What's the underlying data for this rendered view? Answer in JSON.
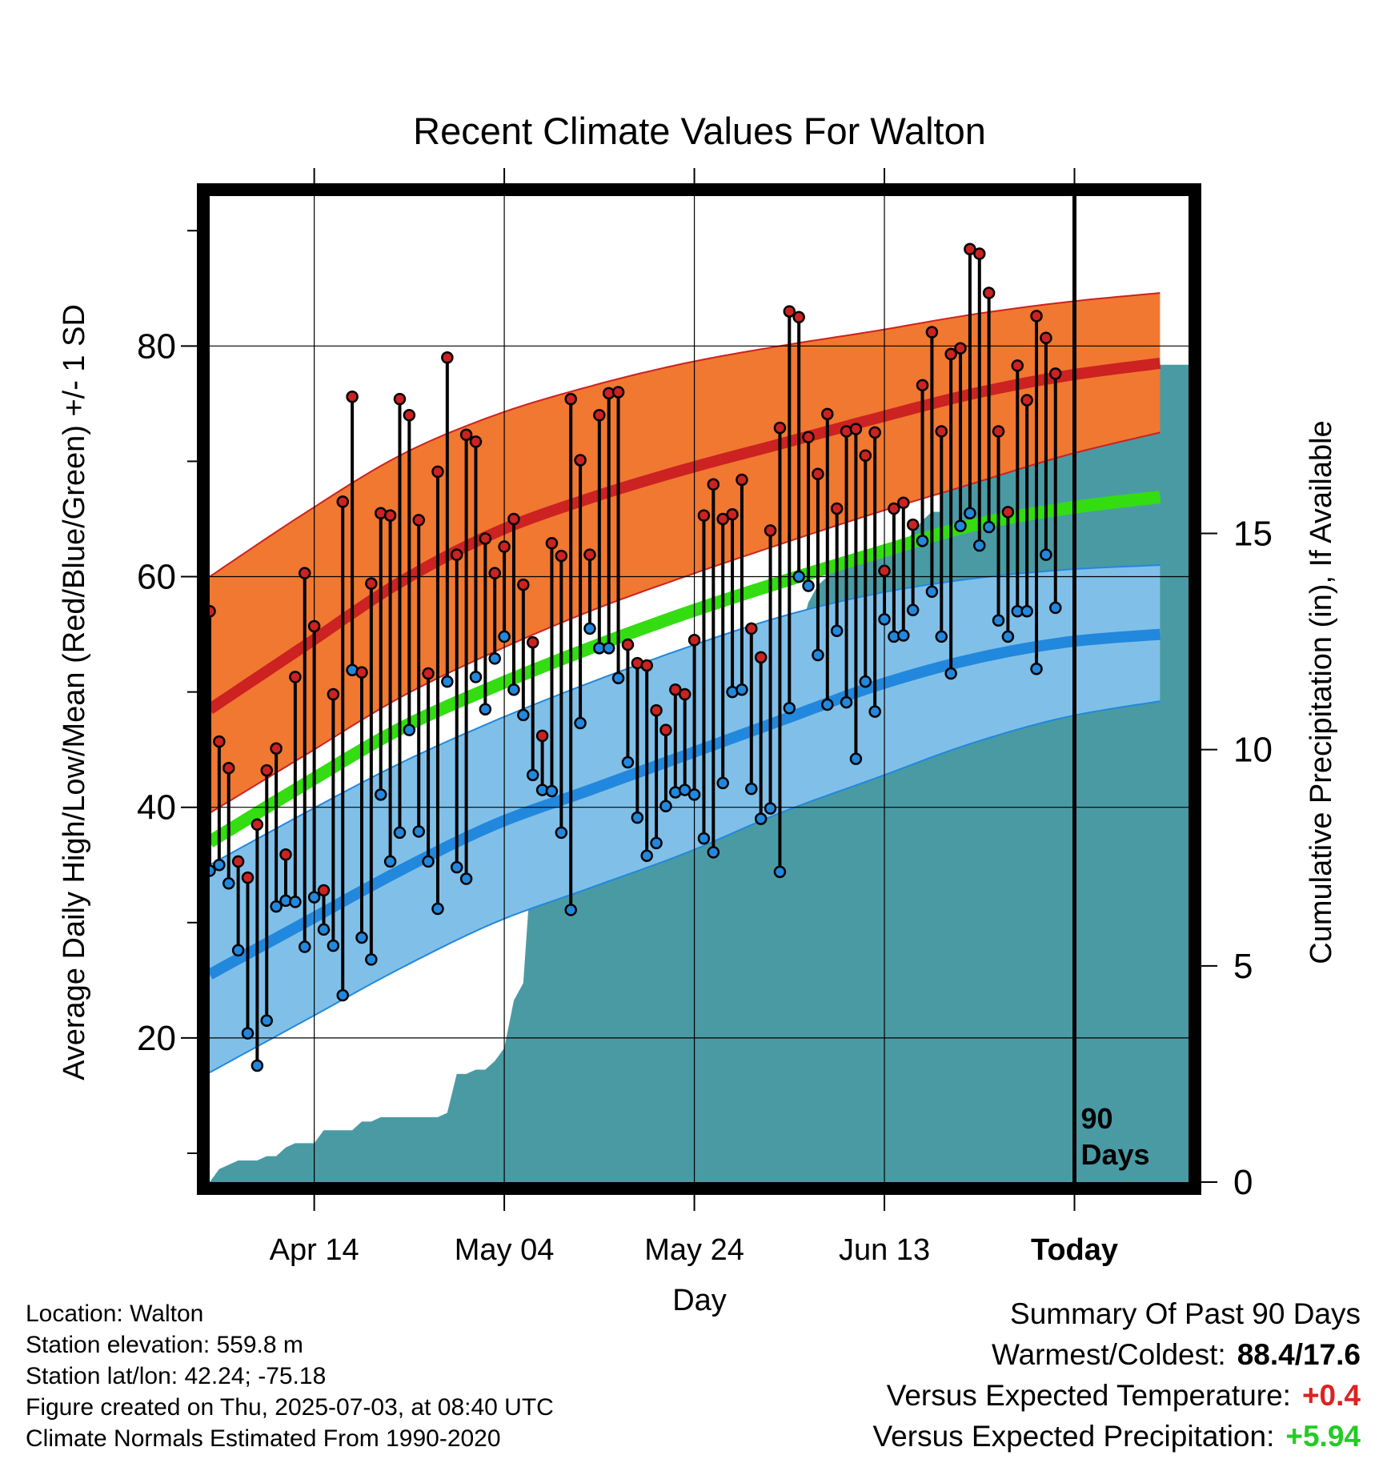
{
  "chart_data": {
    "type": "line",
    "title": "Recent Climate Values For Walton",
    "xlabel": "Day",
    "ylabel": "Average Daily High/Low/Mean (Red/Blue/Green) +/- 1 SD",
    "y2label": "Cumulative Precipitation (in), If Available",
    "xlim": [
      1,
      104
    ],
    "ylim": [
      7.5,
      93
    ],
    "y2lim": [
      0,
      22.8
    ],
    "x_ticks": [
      {
        "x": 12,
        "label": "Apr 14"
      },
      {
        "x": 32,
        "label": "May 04"
      },
      {
        "x": 52,
        "label": "May 24"
      },
      {
        "x": 72,
        "label": "Jun 13"
      },
      {
        "x": 92,
        "label": "Today"
      }
    ],
    "y_ticks": [
      20,
      40,
      60,
      80
    ],
    "y2_ticks": [
      0,
      5,
      10,
      15
    ],
    "today_x": 92,
    "today_label": [
      "90",
      "Days"
    ],
    "normals": {
      "x": [
        1,
        11,
        21,
        31,
        41,
        51,
        61,
        71,
        81,
        91,
        101
      ],
      "high_mean": [
        48.5,
        54.0,
        59.5,
        63.8,
        66.8,
        69.3,
        71.5,
        73.7,
        75.8,
        77.4,
        78.5
      ],
      "high_upper": [
        60.0,
        65.5,
        70.5,
        74.0,
        76.5,
        78.5,
        80.0,
        81.3,
        82.7,
        83.8,
        84.6
      ],
      "high_lower": [
        39.5,
        44.5,
        49.5,
        53.5,
        57.0,
        60.0,
        62.8,
        65.5,
        68.0,
        70.5,
        72.5
      ],
      "mean": [
        37.0,
        42.0,
        46.8,
        50.5,
        53.8,
        56.8,
        59.5,
        62.0,
        64.4,
        65.9,
        66.9
      ],
      "low_mean": [
        25.5,
        30.0,
        34.5,
        38.5,
        41.5,
        44.5,
        47.5,
        50.5,
        52.8,
        54.3,
        55.0
      ],
      "low_upper": [
        35.0,
        39.5,
        43.8,
        47.5,
        50.8,
        53.8,
        56.5,
        58.5,
        59.8,
        60.6,
        61.0
      ],
      "low_lower": [
        17.0,
        21.5,
        26.0,
        30.0,
        33.0,
        36.0,
        39.5,
        42.5,
        45.5,
        47.8,
        49.2
      ]
    },
    "series": [
      {
        "name": "High",
        "color": "#cc2222",
        "values": [
          57.0,
          45.7,
          43.4,
          35.3,
          33.9,
          38.5,
          43.2,
          45.1,
          35.9,
          51.3,
          60.3,
          55.7,
          32.8,
          49.8,
          66.5,
          75.6,
          51.7,
          59.4,
          65.5,
          65.3,
          75.4,
          74.0,
          64.9,
          51.6,
          69.1,
          79.0,
          61.9,
          72.3,
          71.7,
          63.3,
          60.3,
          62.6,
          65.0,
          59.3,
          54.3,
          46.2,
          62.9,
          61.8,
          75.4,
          70.1,
          61.9,
          74.0,
          75.9,
          76.0,
          54.1,
          52.5,
          52.3,
          48.4,
          46.7,
          50.2,
          49.8,
          54.5,
          65.3,
          68.0,
          65.0,
          65.4,
          68.4,
          55.5,
          53.0,
          64.0,
          72.9,
          83.0,
          82.5,
          72.1,
          68.9,
          74.1,
          65.9,
          72.6,
          72.8,
          70.5,
          72.5,
          60.5,
          65.9,
          66.4,
          64.5,
          76.6,
          81.2,
          72.6,
          79.3,
          79.8,
          88.4,
          88.0,
          84.6,
          72.6,
          65.6,
          78.3,
          75.3,
          82.6,
          80.7,
          77.6
        ]
      },
      {
        "name": "Low",
        "color": "#2288dd",
        "values": [
          34.5,
          35.0,
          33.4,
          27.6,
          20.4,
          17.6,
          21.5,
          31.4,
          31.9,
          31.8,
          27.9,
          32.2,
          29.4,
          28.0,
          23.7,
          51.9,
          28.7,
          26.8,
          41.1,
          35.3,
          37.8,
          46.7,
          37.9,
          35.3,
          31.2,
          50.9,
          34.8,
          33.8,
          51.3,
          48.5,
          52.9,
          54.8,
          50.2,
          48.0,
          42.8,
          41.5,
          41.4,
          37.8,
          31.1,
          47.3,
          55.5,
          53.8,
          53.8,
          51.2,
          43.9,
          39.1,
          35.8,
          36.9,
          40.1,
          41.3,
          41.5,
          41.1,
          37.3,
          36.1,
          42.1,
          50.0,
          50.2,
          41.6,
          39.0,
          39.9,
          34.4,
          48.6,
          60.0,
          59.2,
          53.2,
          48.9,
          55.3,
          49.1,
          44.2,
          50.9,
          48.3,
          56.3,
          54.8,
          54.9,
          57.1,
          63.1,
          58.7,
          54.8,
          51.6,
          64.4,
          65.5,
          62.7,
          64.3,
          56.2,
          54.8,
          57.0,
          57.0,
          52.0,
          61.9,
          57.3
        ]
      }
    ],
    "precip_x": [
      1,
      2,
      3,
      4,
      5,
      6,
      7,
      8,
      9,
      10,
      11,
      12,
      13,
      14,
      15,
      16,
      17,
      18,
      19,
      20,
      21,
      22,
      23,
      24,
      25,
      26,
      27,
      28,
      29,
      30,
      31,
      32,
      33,
      34,
      35,
      36,
      37,
      38,
      39,
      40,
      41,
      42,
      43,
      44,
      45,
      46,
      47,
      48,
      49,
      50,
      51,
      52,
      53,
      54,
      55,
      56,
      57,
      58,
      59,
      60,
      61,
      62,
      63,
      64,
      65,
      66,
      67,
      68,
      69,
      70,
      71,
      72,
      73,
      74,
      75,
      76,
      77,
      78,
      79,
      80,
      81,
      82,
      83,
      84,
      85,
      86,
      87,
      88,
      89,
      90,
      91,
      92,
      93,
      94,
      95,
      96,
      97,
      98,
      99,
      100,
      101,
      102,
      103,
      104
    ],
    "precip_cum": [
      0.0,
      0.3,
      0.4,
      0.5,
      0.5,
      0.5,
      0.6,
      0.6,
      0.8,
      0.9,
      0.9,
      0.9,
      1.2,
      1.2,
      1.2,
      1.2,
      1.4,
      1.4,
      1.5,
      1.5,
      1.5,
      1.5,
      1.5,
      1.5,
      1.5,
      1.6,
      2.5,
      2.5,
      2.6,
      2.6,
      2.8,
      3.1,
      4.2,
      4.6,
      7.8,
      8.0,
      8.0,
      9.0,
      9.0,
      9.0,
      9.0,
      9.1,
      9.1,
      9.3,
      9.4,
      9.5,
      9.5,
      9.8,
      10.2,
      10.6,
      10.7,
      10.7,
      10.7,
      10.7,
      10.7,
      10.7,
      10.7,
      12.0,
      12.0,
      12.0,
      12.0,
      12.2,
      12.6,
      13.4,
      13.8,
      14.0,
      14.3,
      14.5,
      14.5,
      14.5,
      14.6,
      14.6,
      14.7,
      14.8,
      15.0,
      15.3,
      15.5,
      15.5,
      18.2,
      18.2,
      18.2,
      18.4,
      18.5,
      18.5,
      18.5,
      18.5,
      18.9,
      18.9,
      18.9,
      18.9,
      18.9,
      18.9,
      18.9,
      18.9,
      18.9,
      18.9,
      18.9,
      18.9,
      18.9,
      18.9,
      18.9,
      18.9,
      18.9,
      18.9
    ]
  },
  "colors": {
    "high": "#cc2222",
    "low": "#2288dd",
    "mean": "#33dd11",
    "high_band": "#f07830",
    "low_band": "#80c0e8",
    "precip": "#4a9aa4"
  },
  "info": {
    "location": "Location: Walton",
    "elevation": "Station elevation: 559.8 m",
    "latlon": "Station lat/lon: 42.24; -75.18",
    "created": "Figure created on Thu, 2025-07-03, at 08:40 UTC",
    "normals": "Climate Normals Estimated From 1990-2020"
  },
  "summary": {
    "title": "Summary Of Past 90 Days",
    "warm_cold_label": "Warmest/Coldest:",
    "warm_cold_value": "88.4/17.6",
    "temp_label": "Versus Expected Temperature:",
    "temp_value": "+0.4",
    "precip_label": "Versus Expected Precipitation:",
    "precip_value": "+5.94"
  }
}
